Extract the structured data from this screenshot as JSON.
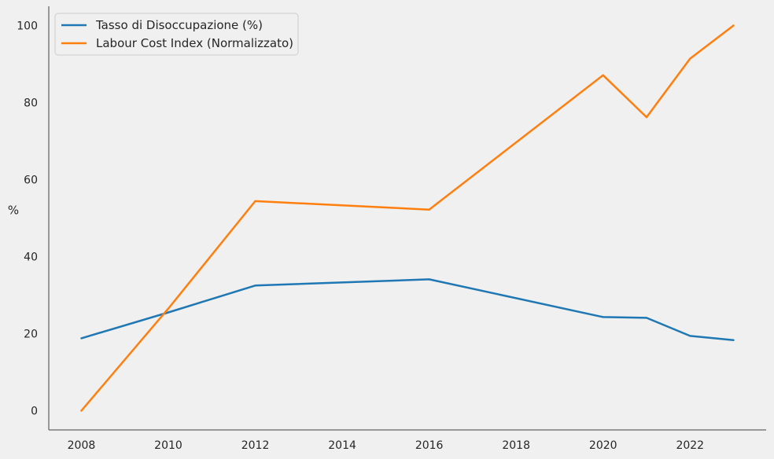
{
  "chart_data": {
    "type": "line",
    "title": "",
    "xlabel": "",
    "ylabel": "%",
    "x": [
      2008,
      2010,
      2012,
      2016,
      2020,
      2021,
      2022,
      2023
    ],
    "xlim": [
      2007.25,
      2023.75
    ],
    "ylim": [
      -5,
      105
    ],
    "xticks": [
      2008,
      2010,
      2012,
      2014,
      2016,
      2018,
      2020,
      2022
    ],
    "yticks": [
      0,
      20,
      40,
      60,
      80,
      100
    ],
    "grid": false,
    "legend_position": "top-left",
    "series": [
      {
        "name": "Tasso di Disoccupazione (%)",
        "color": "#1f77b4",
        "values": [
          18.8,
          25.5,
          32.5,
          34.1,
          24.3,
          24.1,
          19.4,
          18.3
        ]
      },
      {
        "name": "Labour Cost Index (Normalizzato)",
        "color": "#ff7f0e",
        "values": [
          0.0,
          26.5,
          54.4,
          52.2,
          87.1,
          76.2,
          91.4,
          100.0
        ]
      }
    ]
  }
}
